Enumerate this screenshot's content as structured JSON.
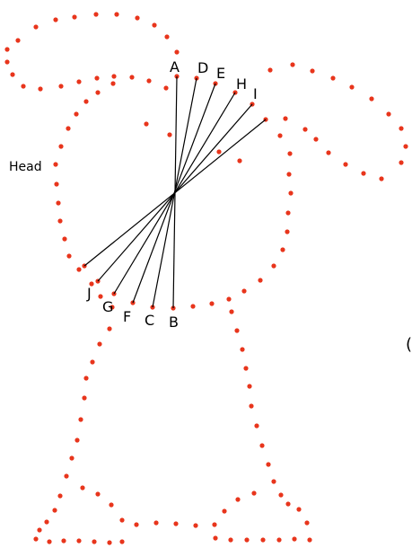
{
  "labels": {
    "head": "Head",
    "cut_right": "(",
    "points": {
      "A": "A",
      "B": "B",
      "C": "C",
      "D": "D",
      "E": "E",
      "F": "F",
      "G": "G",
      "H": "H",
      "I": "I",
      "J": "J"
    }
  },
  "colors": {
    "dot": "#e8351c",
    "line": "#000000",
    "background": "#ffffff"
  }
}
